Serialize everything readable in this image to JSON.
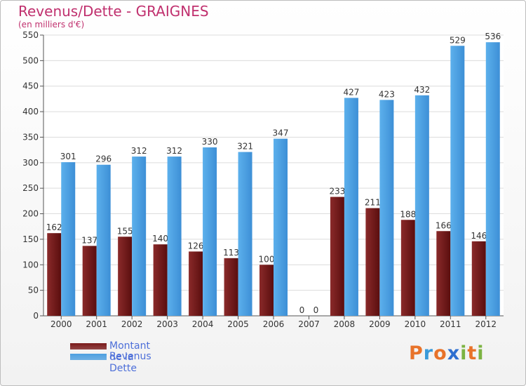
{
  "header": {
    "title": "Revenus/Dette - GRAIGNES",
    "subtitle": "(en milliers d'€)"
  },
  "chart_data": {
    "type": "bar",
    "categories": [
      "2000",
      "2001",
      "2002",
      "2003",
      "2004",
      "2005",
      "2006",
      "2007",
      "2008",
      "2009",
      "2010",
      "2011",
      "2012"
    ],
    "series": [
      {
        "name": "Montant de la Dette",
        "color": "#7a1a1a",
        "values": [
          162,
          137,
          155,
          140,
          126,
          113,
          100,
          0,
          233,
          211,
          188,
          166,
          146
        ]
      },
      {
        "name": "Revenus",
        "color": "#4d9fe0",
        "values": [
          301,
          296,
          312,
          312,
          330,
          321,
          347,
          0,
          427,
          423,
          432,
          529,
          536
        ]
      }
    ],
    "yticks": [
      0,
      50,
      100,
      150,
      200,
      250,
      300,
      350,
      400,
      450,
      500,
      550
    ],
    "ylim": [
      0,
      550
    ],
    "grid": true,
    "legend_position": "bottom-left"
  },
  "legend": {
    "items": [
      {
        "label": "Montant de la Dette",
        "color": "#7a1a1a"
      },
      {
        "label": "Revenus",
        "color": "#4d9fe0"
      }
    ]
  },
  "brand": {
    "letters": [
      "P",
      "r",
      "o",
      "x",
      "i",
      "t",
      "i"
    ],
    "colors": [
      "#e8732a",
      "#3a9ad9",
      "#e8732a",
      "#2e6fd0",
      "#7cb342",
      "#e8732a",
      "#7cb342"
    ]
  }
}
